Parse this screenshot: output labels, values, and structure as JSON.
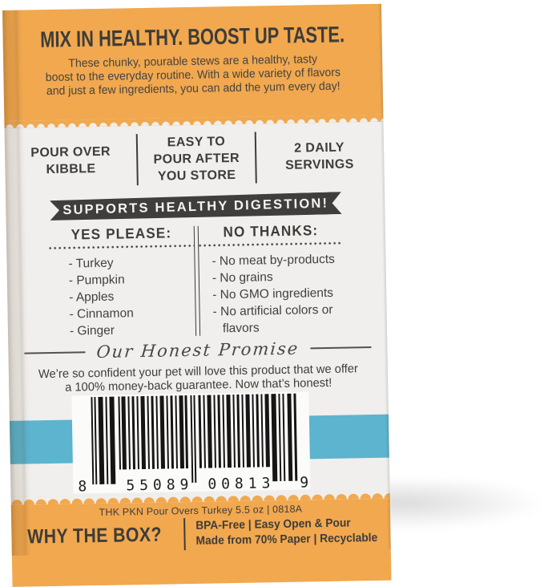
{
  "top_banner": {
    "headline": "MIX IN HEALTHY. BOOST UP TASTE.",
    "tagline": "These chunky, pourable stews are a healthy, tasty\nboost to the everyday routine. With a wide variety of flavors\nand just a few ingredients, you can add the yum every day!"
  },
  "features": {
    "col1": "POUR OVER\nKIBBLE",
    "col2": "EASY TO\nPOUR AFTER\nYOU STORE",
    "col3": "2 DAILY\nSERVINGS"
  },
  "ribbon_label": "SUPPORTS HEALTHY DIGESTION!",
  "yes_column": {
    "heading": "YES PLEASE:",
    "items": [
      "- Turkey",
      "- Pumpkin",
      "- Apples",
      "- Cinnamon",
      "- Ginger"
    ]
  },
  "no_column": {
    "heading": "NO THANKS:",
    "items": [
      "- No meat by-products",
      "- No grains",
      "- No GMO ingredients",
      "- No artificial colors or flavors"
    ]
  },
  "promise": {
    "heading": "Our Honest Promise",
    "body": "We’re so confident your pet will love this product that we offer\na 100% money-back guarantee. Now that’s honest!"
  },
  "barcode": {
    "left_digit": "8",
    "group1": "55089",
    "group2": "00813",
    "right_digit": "9"
  },
  "footer": {
    "code_line": "THK PKN Pour Overs Turkey 5.5 oz | 0818A",
    "why_heading": "WHY THE BOX?",
    "benefits": "BPA-Free | Easy Open & Pour\nMade from 70% Paper | Recyclable"
  },
  "colors": {
    "orange": "#F1A84F",
    "blue": "#5CB4CF",
    "ink": "#3E3C39",
    "panel": "#F0EFED",
    "ribbon_dark": "#403E3C"
  }
}
